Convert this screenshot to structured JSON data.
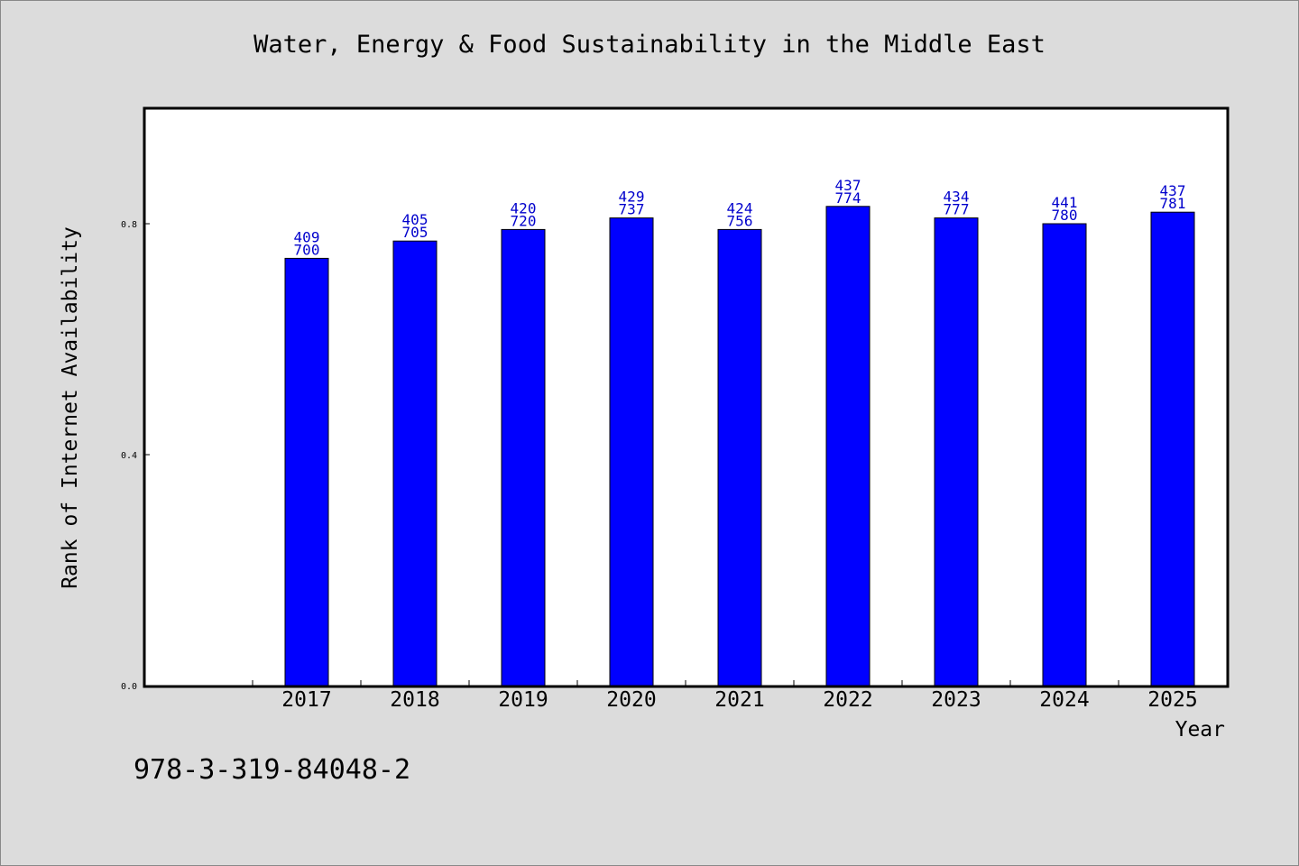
{
  "chart_data": {
    "type": "bar",
    "title": "Water, Energy & Food Sustainability in the Middle East",
    "xlabel": "Year",
    "ylabel": "Rank of Internet Availability",
    "categories": [
      "2017",
      "2018",
      "2019",
      "2020",
      "2021",
      "2022",
      "2023",
      "2024",
      "2025"
    ],
    "series": [
      {
        "values": [
          0.74,
          0.77,
          0.79,
          0.81,
          0.79,
          0.83,
          0.81,
          0.8,
          0.82
        ]
      }
    ],
    "data_labels": [
      [
        "409",
        "700"
      ],
      [
        "405",
        "705"
      ],
      [
        "420",
        "720"
      ],
      [
        "429",
        "737"
      ],
      [
        "424",
        "756"
      ],
      [
        "437",
        "774"
      ],
      [
        "434",
        "777"
      ],
      [
        "441",
        "780"
      ],
      [
        "437",
        "781"
      ]
    ],
    "yticks": [
      "0.0",
      "0.4",
      "0.8"
    ],
    "ytick_values": [
      0.0,
      0.4,
      0.8
    ],
    "ylim": [
      0.0,
      1.0
    ],
    "grid": false,
    "legend": "none",
    "colors": {
      "bar": "#0000ff",
      "bar_edge": "#000000",
      "data_label": "#0000cc",
      "plot_background": "#ffffff",
      "page_background": "#dcdcdc"
    }
  },
  "footer": {
    "isbn": "978-3-319-84048-2"
  }
}
